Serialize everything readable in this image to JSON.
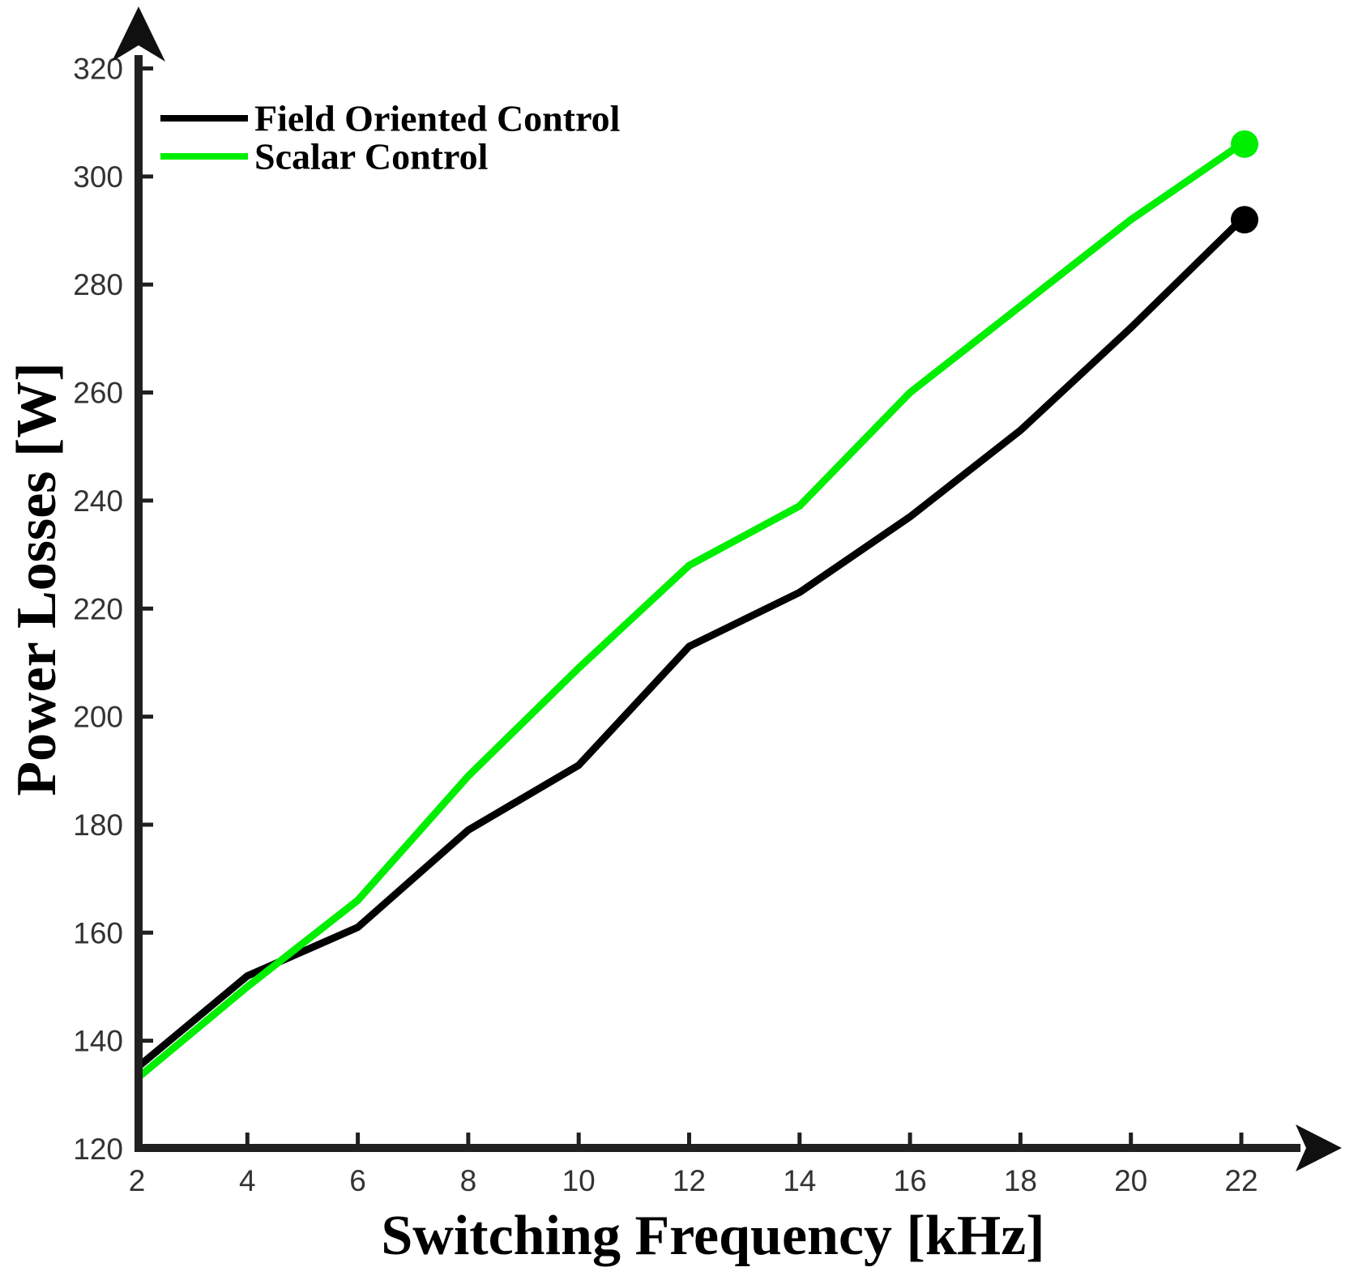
{
  "figure": {
    "background": "#ffffff",
    "axis_color": "#202020",
    "tick_label_color": "#333333"
  },
  "legend": {
    "items": [
      {
        "label": "Field Oriented Control",
        "color": "#000000"
      },
      {
        "label": "Scalar Control",
        "color": "#00ee00"
      }
    ]
  },
  "chart_data": {
    "type": "line",
    "title": "",
    "xlabel": "Switching Frequency [kHz]",
    "ylabel": "Power Losses [W]",
    "x": [
      2,
      4,
      6,
      8,
      10,
      12,
      14,
      16,
      18,
      20,
      22
    ],
    "series": [
      {
        "name": "Field Oriented Control",
        "color": "#000000",
        "values": [
          135,
          152,
          161,
          179,
          191,
          213,
          223,
          237,
          253,
          272,
          292
        ],
        "end_marker": true
      },
      {
        "name": "Scalar Control",
        "color": "#00ee00",
        "values": [
          133,
          150,
          166,
          189,
          209,
          228,
          239,
          260,
          276,
          292,
          306
        ],
        "end_marker": true
      }
    ],
    "x_ticks": [
      2,
      4,
      6,
      8,
      10,
      12,
      14,
      16,
      18,
      20,
      22
    ],
    "y_ticks": [
      120,
      140,
      160,
      180,
      200,
      220,
      240,
      260,
      280,
      300,
      320
    ],
    "xlim": [
      2,
      23.5
    ],
    "ylim": [
      120,
      322
    ],
    "grid": false,
    "legend_position": "top-left",
    "axes_have_arrowheads": true
  }
}
